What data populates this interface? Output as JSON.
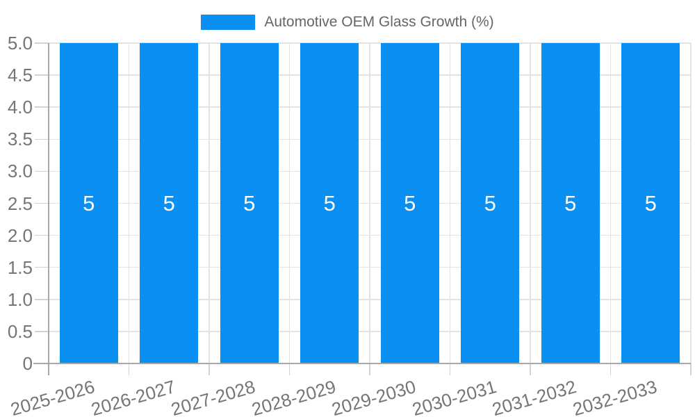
{
  "legend": {
    "label": "Automotive OEM Glass Growth (%)",
    "swatch_color": "#0a8ff2"
  },
  "chart_data": {
    "type": "bar",
    "title": "Automotive OEM Glass Growth (%)",
    "categories": [
      "2025-2026",
      "2026-2027",
      "2027-2028",
      "2028-2029",
      "2029-2030",
      "2030-2031",
      "2031-2032",
      "2032-2033"
    ],
    "series": [
      {
        "name": "Automotive OEM Glass Growth (%)",
        "values": [
          5,
          5,
          5,
          5,
          5,
          5,
          5,
          5
        ],
        "value_labels": [
          "5",
          "5",
          "5",
          "5",
          "5",
          "5",
          "5",
          "5"
        ]
      }
    ],
    "xlabel": "",
    "ylabel": "",
    "ylim": [
      0,
      5
    ],
    "yticks": [
      {
        "v": 5,
        "label": "5.0"
      },
      {
        "v": 4.5,
        "label": "4.5"
      },
      {
        "v": 4,
        "label": "4.0"
      },
      {
        "v": 3.5,
        "label": "3.5"
      },
      {
        "v": 3,
        "label": "3.0"
      },
      {
        "v": 2.5,
        "label": "2.5"
      },
      {
        "v": 2,
        "label": "2.0"
      },
      {
        "v": 1.5,
        "label": "1.5"
      },
      {
        "v": 1,
        "label": "1.0"
      },
      {
        "v": 0.5,
        "label": "0.5"
      },
      {
        "v": 0,
        "label": "0"
      }
    ],
    "grid": true,
    "legend_position": "top-center",
    "colors": {
      "bar": "#0a8ff2",
      "bar_label": "#ffffff",
      "grid": "#e3e3e3",
      "axis": "#a8a8a8",
      "tick_mark": "#d2d2d2",
      "tick_text": "#757575",
      "legend_text": "#666666"
    }
  }
}
